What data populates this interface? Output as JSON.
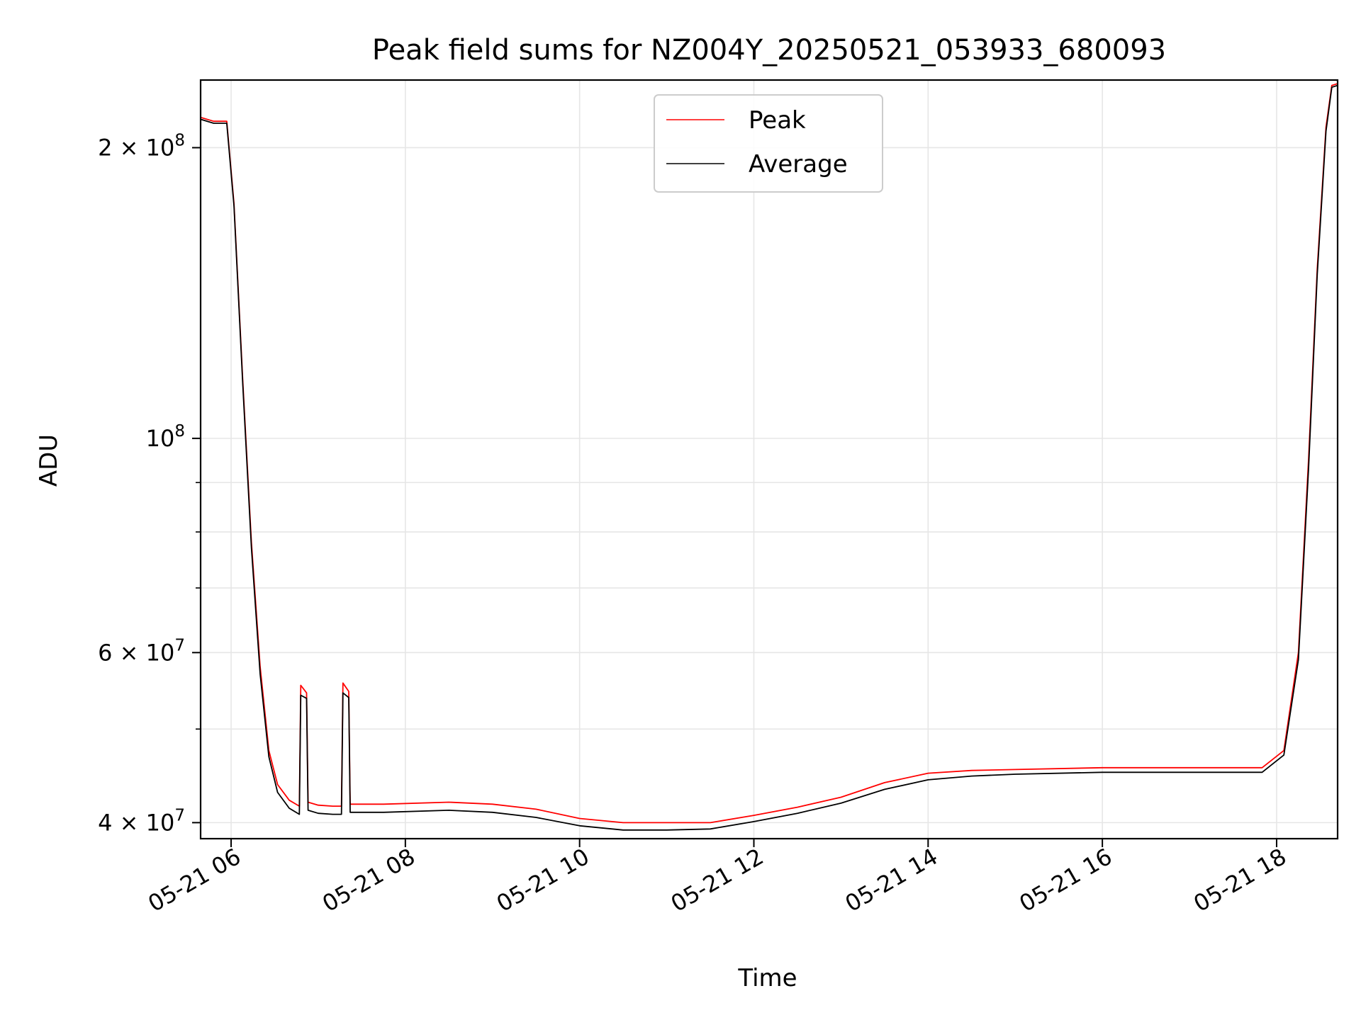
{
  "chart_data": {
    "type": "line",
    "title": "Peak field sums for NZ004Y_20250521_053933_680093",
    "xlabel": "Time",
    "ylabel": "ADU",
    "y_scale": "log",
    "ylim": [
      38500000,
      235000000
    ],
    "xlim": [
      "2025-05-21T05:39",
      "2025-05-21T18:42"
    ],
    "grid": true,
    "legend_position": "top-center",
    "x_ticks": [
      {
        "value": "2025-05-21T06:00",
        "label": "05-21 06"
      },
      {
        "value": "2025-05-21T08:00",
        "label": "05-21 08"
      },
      {
        "value": "2025-05-21T10:00",
        "label": "05-21 10"
      },
      {
        "value": "2025-05-21T12:00",
        "label": "05-21 12"
      },
      {
        "value": "2025-05-21T14:00",
        "label": "05-21 14"
      },
      {
        "value": "2025-05-21T16:00",
        "label": "05-21 16"
      },
      {
        "value": "2025-05-21T18:00",
        "label": "05-21 18"
      }
    ],
    "y_ticks": [
      {
        "value": 40000000,
        "base": "4 × 10",
        "exp": "7"
      },
      {
        "value": 60000000,
        "base": "6 × 10",
        "exp": "7"
      },
      {
        "value": 100000000,
        "base": "10",
        "exp": "8"
      },
      {
        "value": 200000000,
        "base": "2 × 10",
        "exp": "8"
      }
    ],
    "series": [
      {
        "name": "Peak",
        "color": "#ff0000",
        "points": [
          [
            "2025-05-21T05:39",
            215000000
          ],
          [
            "2025-05-21T05:48",
            213000000
          ],
          [
            "2025-05-21T05:57",
            213000000
          ],
          [
            "2025-05-21T06:02",
            175000000
          ],
          [
            "2025-05-21T06:08",
            115000000
          ],
          [
            "2025-05-21T06:14",
            78000000
          ],
          [
            "2025-05-21T06:20",
            58000000
          ],
          [
            "2025-05-21T06:26",
            47500000
          ],
          [
            "2025-05-21T06:32",
            43800000
          ],
          [
            "2025-05-21T06:40",
            42200000
          ],
          [
            "2025-05-21T06:47",
            41600000
          ],
          [
            "2025-05-21T06:48",
            55500000
          ],
          [
            "2025-05-21T06:52",
            54500000
          ],
          [
            "2025-05-21T06:53",
            42000000
          ],
          [
            "2025-05-21T07:00",
            41700000
          ],
          [
            "2025-05-21T07:10",
            41600000
          ],
          [
            "2025-05-21T07:16",
            41600000
          ],
          [
            "2025-05-21T07:17",
            55800000
          ],
          [
            "2025-05-21T07:21",
            54700000
          ],
          [
            "2025-05-21T07:22",
            41800000
          ],
          [
            "2025-05-21T07:45",
            41800000
          ],
          [
            "2025-05-21T08:30",
            42000000
          ],
          [
            "2025-05-21T09:00",
            41800000
          ],
          [
            "2025-05-21T09:30",
            41300000
          ],
          [
            "2025-05-21T10:00",
            40400000
          ],
          [
            "2025-05-21T10:30",
            40000000
          ],
          [
            "2025-05-21T11:00",
            40000000
          ],
          [
            "2025-05-21T11:30",
            40000000
          ],
          [
            "2025-05-21T12:00",
            40700000
          ],
          [
            "2025-05-21T12:30",
            41500000
          ],
          [
            "2025-05-21T13:00",
            42500000
          ],
          [
            "2025-05-21T13:30",
            44000000
          ],
          [
            "2025-05-21T14:00",
            45000000
          ],
          [
            "2025-05-21T14:30",
            45300000
          ],
          [
            "2025-05-21T15:00",
            45400000
          ],
          [
            "2025-05-21T16:00",
            45600000
          ],
          [
            "2025-05-21T17:00",
            45600000
          ],
          [
            "2025-05-21T17:50",
            45600000
          ],
          [
            "2025-05-21T18:05",
            47500000
          ],
          [
            "2025-05-21T18:15",
            60000000
          ],
          [
            "2025-05-21T18:22",
            95000000
          ],
          [
            "2025-05-21T18:28",
            150000000
          ],
          [
            "2025-05-21T18:34",
            210000000
          ],
          [
            "2025-05-21T18:38",
            232000000
          ],
          [
            "2025-05-21T18:42",
            233000000
          ]
        ]
      },
      {
        "name": "Average",
        "color": "#000000",
        "points": [
          [
            "2025-05-21T05:39",
            214000000
          ],
          [
            "2025-05-21T05:48",
            212000000
          ],
          [
            "2025-05-21T05:57",
            212000000
          ],
          [
            "2025-05-21T06:02",
            174000000
          ],
          [
            "2025-05-21T06:08",
            114000000
          ],
          [
            "2025-05-21T06:14",
            77000000
          ],
          [
            "2025-05-21T06:20",
            57000000
          ],
          [
            "2025-05-21T06:26",
            46800000
          ],
          [
            "2025-05-21T06:32",
            43000000
          ],
          [
            "2025-05-21T06:40",
            41400000
          ],
          [
            "2025-05-21T06:47",
            40800000
          ],
          [
            "2025-05-21T06:48",
            54200000
          ],
          [
            "2025-05-21T06:52",
            53800000
          ],
          [
            "2025-05-21T06:53",
            41200000
          ],
          [
            "2025-05-21T07:00",
            40900000
          ],
          [
            "2025-05-21T07:10",
            40800000
          ],
          [
            "2025-05-21T07:16",
            40800000
          ],
          [
            "2025-05-21T07:17",
            54500000
          ],
          [
            "2025-05-21T07:21",
            53900000
          ],
          [
            "2025-05-21T07:22",
            41000000
          ],
          [
            "2025-05-21T07:45",
            41000000
          ],
          [
            "2025-05-21T08:30",
            41200000
          ],
          [
            "2025-05-21T09:00",
            41000000
          ],
          [
            "2025-05-21T09:30",
            40500000
          ],
          [
            "2025-05-21T10:00",
            39700000
          ],
          [
            "2025-05-21T10:30",
            39300000
          ],
          [
            "2025-05-21T11:00",
            39300000
          ],
          [
            "2025-05-21T11:30",
            39400000
          ],
          [
            "2025-05-21T12:00",
            40100000
          ],
          [
            "2025-05-21T12:30",
            40900000
          ],
          [
            "2025-05-21T13:00",
            41900000
          ],
          [
            "2025-05-21T13:30",
            43300000
          ],
          [
            "2025-05-21T14:00",
            44300000
          ],
          [
            "2025-05-21T14:30",
            44700000
          ],
          [
            "2025-05-21T15:00",
            44900000
          ],
          [
            "2025-05-21T16:00",
            45100000
          ],
          [
            "2025-05-21T17:00",
            45100000
          ],
          [
            "2025-05-21T17:50",
            45100000
          ],
          [
            "2025-05-21T18:05",
            47000000
          ],
          [
            "2025-05-21T18:15",
            59000000
          ],
          [
            "2025-05-21T18:22",
            93000000
          ],
          [
            "2025-05-21T18:28",
            148000000
          ],
          [
            "2025-05-21T18:34",
            208000000
          ],
          [
            "2025-05-21T18:38",
            231000000
          ],
          [
            "2025-05-21T18:42",
            232000000
          ]
        ]
      }
    ]
  }
}
